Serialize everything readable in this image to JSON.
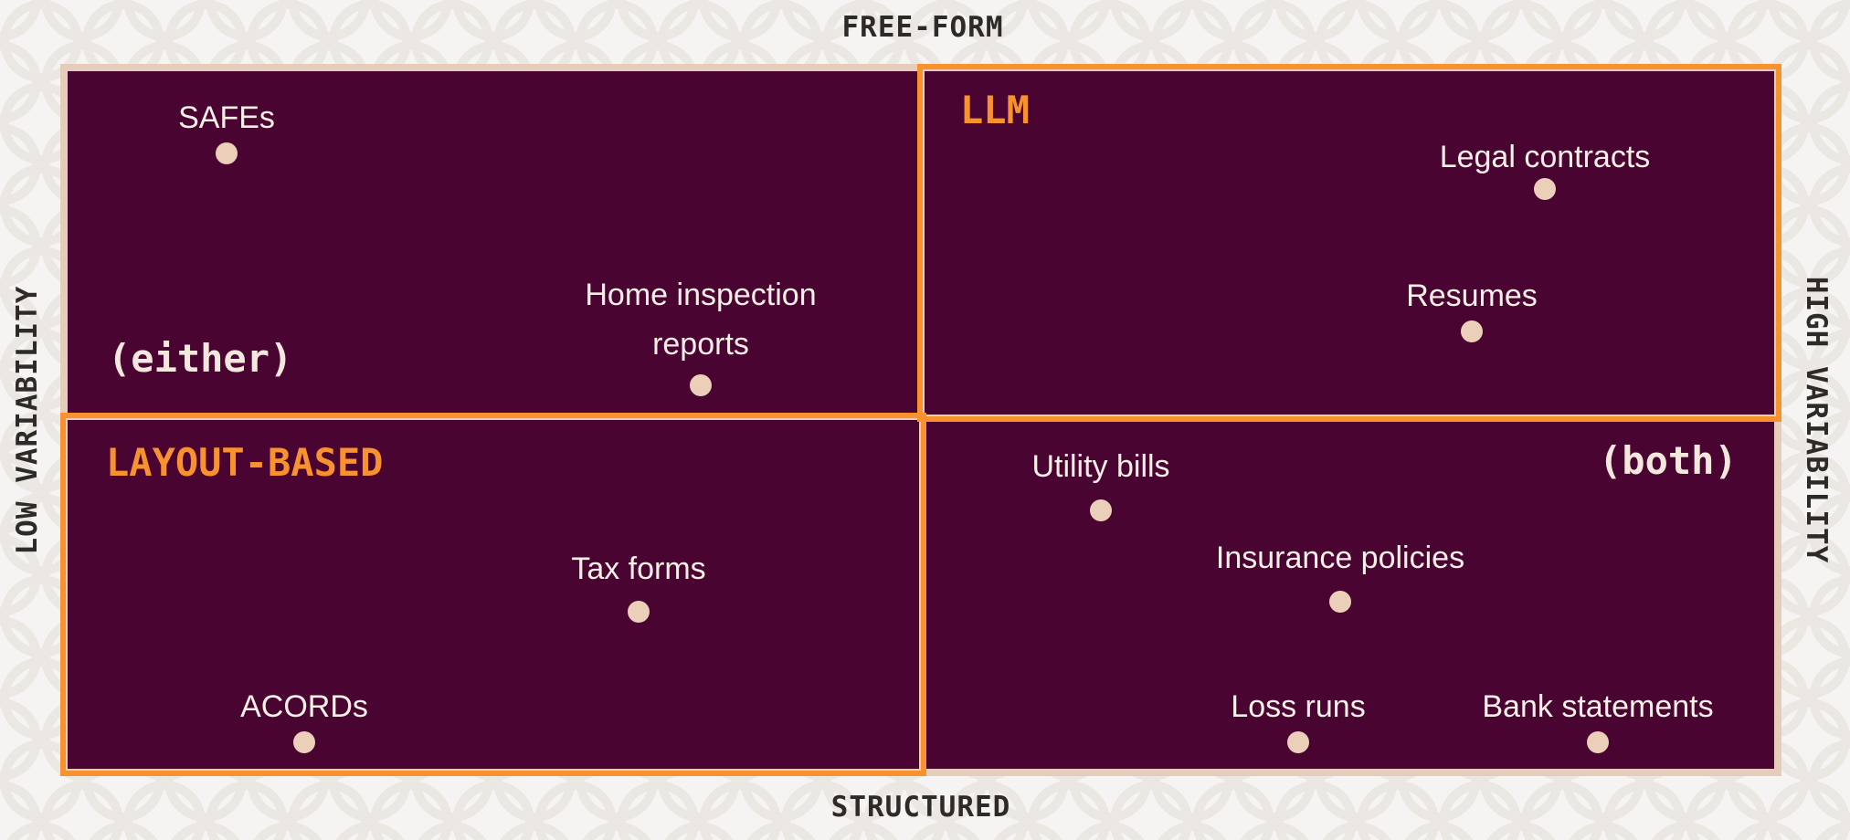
{
  "axes": {
    "top": "FREE-FORM",
    "bottom": "STRUCTURED",
    "left": "LOW VARIABILITY",
    "right": "HIGH VARIABILITY"
  },
  "regions": {
    "llm": "LLM",
    "layout": "LAYOUT-BASED",
    "either": "(either)",
    "both": "(both)"
  },
  "items": [
    {
      "label": "SAFEs",
      "quadrant": "free-form / low variability"
    },
    {
      "label": "Home inspection reports",
      "quadrant": "free-form / low variability"
    },
    {
      "label": "Legal contracts",
      "quadrant": "free-form / high variability"
    },
    {
      "label": "Resumes",
      "quadrant": "free-form / high variability"
    },
    {
      "label": "Tax forms",
      "quadrant": "structured / low variability"
    },
    {
      "label": "ACORDs",
      "quadrant": "structured / low variability"
    },
    {
      "label": "Utility bills",
      "quadrant": "structured / high variability"
    },
    {
      "label": "Insurance policies",
      "quadrant": "structured / high variability"
    },
    {
      "label": "Loss runs",
      "quadrant": "structured / high variability"
    },
    {
      "label": "Bank statements",
      "quadrant": "structured / high variability"
    }
  ],
  "colors": {
    "quadrant_fill": "#4a0431",
    "accent_orange": "#f7922e",
    "dot": "#eccfb8",
    "background": "#f6f4f2"
  }
}
